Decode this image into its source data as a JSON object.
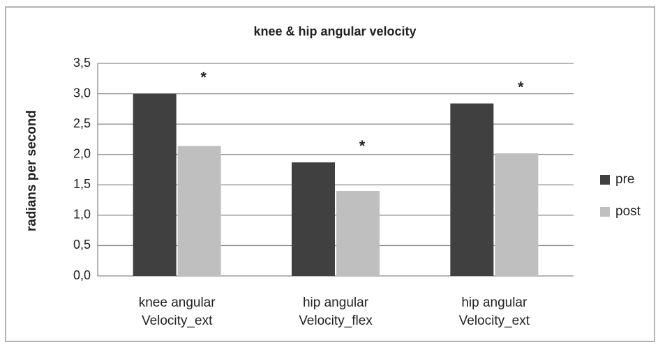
{
  "chart_data": {
    "type": "bar",
    "title": "knee & hip angular velocity",
    "y_label": "radians per second",
    "categories": [
      "knee angular Velocity_ext",
      "hip angular Velocity_flex",
      "hip angular Velocity_ext"
    ],
    "series": [
      {
        "name": "pre",
        "color": "#404040",
        "values": [
          3.0,
          1.87,
          2.84
        ]
      },
      {
        "name": "post",
        "color": "#bfbfbf",
        "values": [
          2.14,
          1.4,
          2.02
        ]
      }
    ],
    "annotations": [
      "*",
      "*",
      "*"
    ],
    "ylim": [
      0,
      3.5
    ],
    "yticks": [
      {
        "value": 0,
        "label": "0,0"
      },
      {
        "value": 0.5,
        "label": "0,5"
      },
      {
        "value": 1,
        "label": "1,0"
      },
      {
        "value": 1.5,
        "label": "1,5"
      },
      {
        "value": 2,
        "label": "2,0"
      },
      {
        "value": 2.5,
        "label": "2,5"
      },
      {
        "value": 3,
        "label": "3,0"
      },
      {
        "value": 3.5,
        "label": "3,5"
      }
    ],
    "grid": true,
    "legend": "right"
  }
}
